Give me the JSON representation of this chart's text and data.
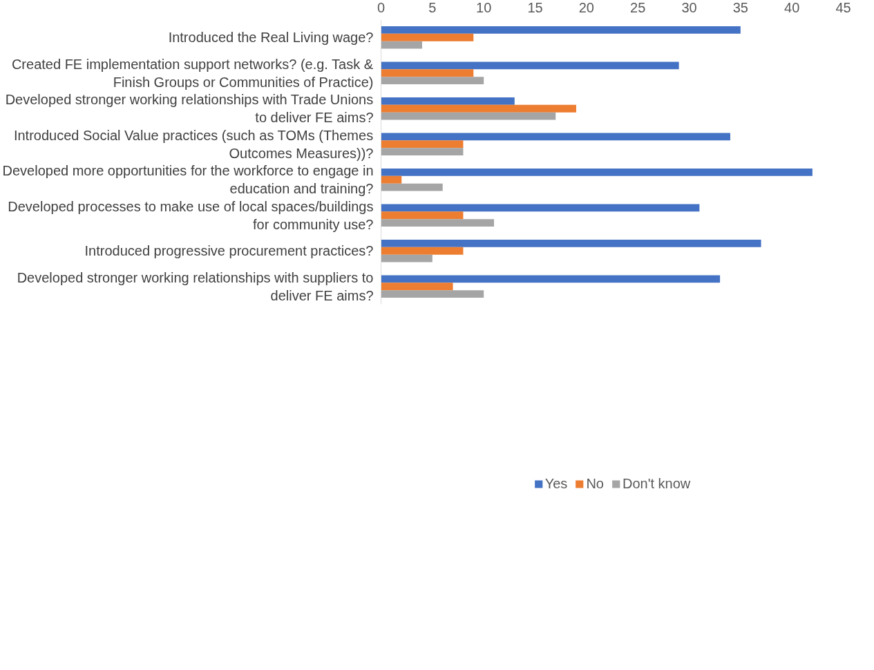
{
  "chart_data": {
    "type": "bar",
    "orientation": "horizontal",
    "categories": [
      "Introduced the Real Living wage?",
      "Created FE implementation support networks? (e.g. Task & Finish Groups or Communities of Practice)",
      "Developed stronger working relationships with Trade Unions to deliver FE aims?",
      "Introduced Social Value practices (such as TOMs (Themes Outcomes Measures))?",
      "Developed more opportunities for the workforce to engage in education and training?",
      "Developed processes to make use of local spaces/buildings for community use?",
      "Introduced progressive procurement practices?",
      "Developed stronger working relationships with suppliers to deliver FE aims?"
    ],
    "series": [
      {
        "name": "Yes",
        "color": "#4472c4",
        "values": [
          35,
          29,
          13,
          34,
          42,
          31,
          37,
          33
        ]
      },
      {
        "name": "No",
        "color": "#ed7d31",
        "values": [
          9,
          9,
          19,
          8,
          2,
          8,
          8,
          7
        ]
      },
      {
        "name": "Don't know",
        "color": "#a5a5a5",
        "values": [
          4,
          10,
          17,
          8,
          6,
          11,
          5,
          10
        ]
      }
    ],
    "xlim": [
      0,
      45
    ],
    "xticks": [
      0,
      5,
      10,
      15,
      20,
      25,
      30,
      35,
      40,
      45
    ],
    "grid": false,
    "legend": "bottom"
  }
}
